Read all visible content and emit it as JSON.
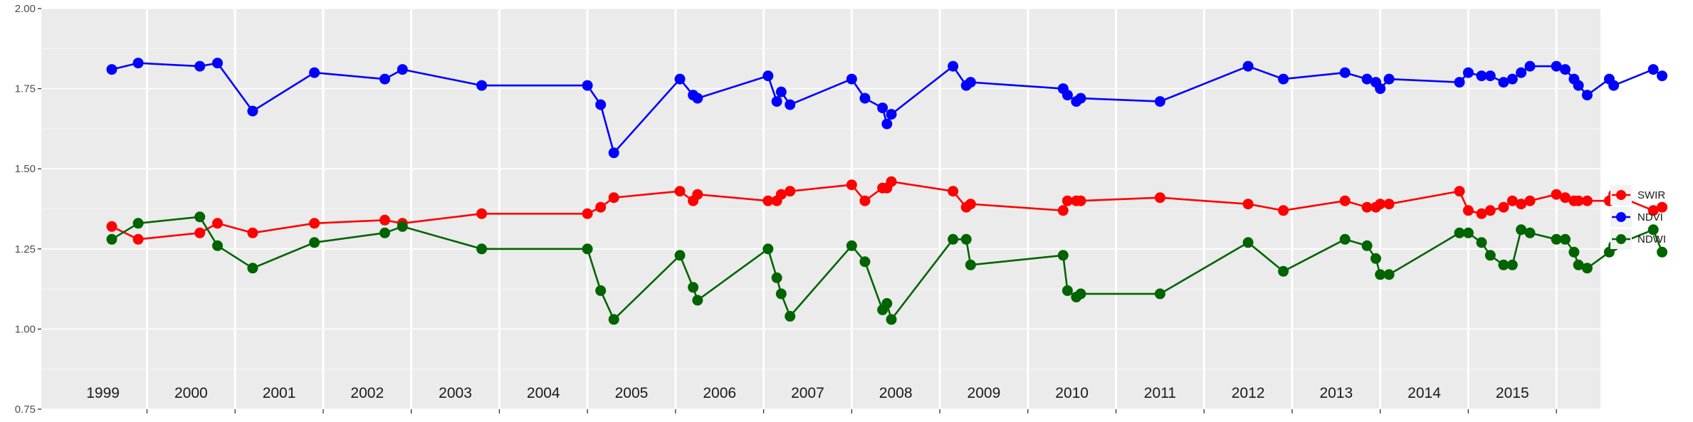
{
  "chart_data": {
    "type": "line",
    "ylim": [
      0.75,
      2.0
    ],
    "y_ticks": [
      "0.75",
      "1.00",
      "1.25",
      "1.50",
      "1.75",
      "2.00"
    ],
    "year_span": [
      1998.8,
      2016.5
    ],
    "year_labels": [
      "1999",
      "2000",
      "2001",
      "2002",
      "2003",
      "2004",
      "2005",
      "2006",
      "2007",
      "2008",
      "2009",
      "2010",
      "2011",
      "2012",
      "2013",
      "2014",
      "2015"
    ],
    "grid": true,
    "legend_position": "right",
    "series": [
      {
        "name": "SWIR",
        "color": "#ff0000",
        "points": [
          [
            1999.6,
            1.32
          ],
          [
            1999.9,
            1.28
          ],
          [
            2000.6,
            1.3
          ],
          [
            2000.8,
            1.33
          ],
          [
            2001.2,
            1.3
          ],
          [
            2001.9,
            1.33
          ],
          [
            2002.7,
            1.34
          ],
          [
            2002.9,
            1.33
          ],
          [
            2003.8,
            1.36
          ],
          [
            2005.0,
            1.36
          ],
          [
            2005.15,
            1.38
          ],
          [
            2005.3,
            1.41
          ],
          [
            2006.05,
            1.43
          ],
          [
            2006.2,
            1.4
          ],
          [
            2006.25,
            1.42
          ],
          [
            2007.05,
            1.4
          ],
          [
            2007.15,
            1.4
          ],
          [
            2007.2,
            1.42
          ],
          [
            2007.3,
            1.43
          ],
          [
            2008.0,
            1.45
          ],
          [
            2008.15,
            1.4
          ],
          [
            2008.35,
            1.44
          ],
          [
            2008.4,
            1.44
          ],
          [
            2008.45,
            1.46
          ],
          [
            2009.15,
            1.43
          ],
          [
            2009.3,
            1.38
          ],
          [
            2009.35,
            1.39
          ],
          [
            2010.4,
            1.37
          ],
          [
            2010.45,
            1.4
          ],
          [
            2010.55,
            1.4
          ],
          [
            2010.6,
            1.4
          ],
          [
            2011.5,
            1.41
          ],
          [
            2012.5,
            1.39
          ],
          [
            2012.9,
            1.37
          ],
          [
            2013.6,
            1.4
          ],
          [
            2013.85,
            1.38
          ],
          [
            2013.95,
            1.38
          ],
          [
            2014.0,
            1.39
          ],
          [
            2014.1,
            1.39
          ],
          [
            2014.9,
            1.43
          ],
          [
            2015.0,
            1.37
          ],
          [
            2015.15,
            1.36
          ],
          [
            2015.25,
            1.37
          ],
          [
            2015.4,
            1.38
          ],
          [
            2015.5,
            1.4
          ],
          [
            2015.6,
            1.39
          ],
          [
            2015.7,
            1.4
          ],
          [
            2016.0,
            1.42
          ],
          [
            2016.1,
            1.41
          ],
          [
            2016.2,
            1.4
          ],
          [
            2016.25,
            1.4
          ],
          [
            2016.35,
            1.4
          ],
          [
            2016.6,
            1.4
          ],
          [
            2016.65,
            1.42
          ],
          [
            2017.1,
            1.37
          ],
          [
            2017.2,
            1.38
          ]
        ]
      },
      {
        "name": "NDVI",
        "color": "#0000ff",
        "points": [
          [
            1999.6,
            1.81
          ],
          [
            1999.9,
            1.83
          ],
          [
            2000.6,
            1.82
          ],
          [
            2000.8,
            1.83
          ],
          [
            2001.2,
            1.68
          ],
          [
            2001.9,
            1.8
          ],
          [
            2002.7,
            1.78
          ],
          [
            2002.9,
            1.81
          ],
          [
            2003.8,
            1.76
          ],
          [
            2005.0,
            1.76
          ],
          [
            2005.15,
            1.7
          ],
          [
            2005.3,
            1.55
          ],
          [
            2006.05,
            1.78
          ],
          [
            2006.2,
            1.73
          ],
          [
            2006.25,
            1.72
          ],
          [
            2007.05,
            1.79
          ],
          [
            2007.15,
            1.71
          ],
          [
            2007.2,
            1.74
          ],
          [
            2007.3,
            1.7
          ],
          [
            2008.0,
            1.78
          ],
          [
            2008.15,
            1.72
          ],
          [
            2008.35,
            1.69
          ],
          [
            2008.4,
            1.64
          ],
          [
            2008.45,
            1.67
          ],
          [
            2009.15,
            1.82
          ],
          [
            2009.3,
            1.76
          ],
          [
            2009.35,
            1.77
          ],
          [
            2010.4,
            1.75
          ],
          [
            2010.45,
            1.73
          ],
          [
            2010.55,
            1.71
          ],
          [
            2010.6,
            1.72
          ],
          [
            2011.5,
            1.71
          ],
          [
            2012.5,
            1.82
          ],
          [
            2012.9,
            1.78
          ],
          [
            2013.6,
            1.8
          ],
          [
            2013.85,
            1.78
          ],
          [
            2013.95,
            1.77
          ],
          [
            2014.0,
            1.75
          ],
          [
            2014.1,
            1.78
          ],
          [
            2014.9,
            1.77
          ],
          [
            2015.0,
            1.8
          ],
          [
            2015.15,
            1.79
          ],
          [
            2015.25,
            1.79
          ],
          [
            2015.4,
            1.77
          ],
          [
            2015.5,
            1.78
          ],
          [
            2015.6,
            1.8
          ],
          [
            2015.7,
            1.82
          ],
          [
            2016.0,
            1.82
          ],
          [
            2016.1,
            1.81
          ],
          [
            2016.2,
            1.78
          ],
          [
            2016.25,
            1.76
          ],
          [
            2016.35,
            1.73
          ],
          [
            2016.6,
            1.78
          ],
          [
            2016.65,
            1.76
          ],
          [
            2017.1,
            1.81
          ],
          [
            2017.2,
            1.79
          ]
        ]
      },
      {
        "name": "NDWI",
        "color": "#006400",
        "points": [
          [
            1999.6,
            1.28
          ],
          [
            1999.9,
            1.33
          ],
          [
            2000.6,
            1.35
          ],
          [
            2000.8,
            1.26
          ],
          [
            2001.2,
            1.19
          ],
          [
            2001.9,
            1.27
          ],
          [
            2002.7,
            1.3
          ],
          [
            2002.9,
            1.32
          ],
          [
            2003.8,
            1.25
          ],
          [
            2005.0,
            1.25
          ],
          [
            2005.15,
            1.12
          ],
          [
            2005.3,
            1.03
          ],
          [
            2006.05,
            1.23
          ],
          [
            2006.2,
            1.13
          ],
          [
            2006.25,
            1.09
          ],
          [
            2007.05,
            1.25
          ],
          [
            2007.15,
            1.16
          ],
          [
            2007.2,
            1.11
          ],
          [
            2007.3,
            1.04
          ],
          [
            2008.0,
            1.26
          ],
          [
            2008.15,
            1.21
          ],
          [
            2008.35,
            1.06
          ],
          [
            2008.4,
            1.08
          ],
          [
            2008.45,
            1.03
          ],
          [
            2009.15,
            1.28
          ],
          [
            2009.3,
            1.28
          ],
          [
            2009.35,
            1.2
          ],
          [
            2010.4,
            1.23
          ],
          [
            2010.45,
            1.12
          ],
          [
            2010.55,
            1.1
          ],
          [
            2010.6,
            1.11
          ],
          [
            2011.5,
            1.11
          ],
          [
            2012.5,
            1.27
          ],
          [
            2012.9,
            1.18
          ],
          [
            2013.6,
            1.28
          ],
          [
            2013.85,
            1.26
          ],
          [
            2013.95,
            1.22
          ],
          [
            2014.0,
            1.17
          ],
          [
            2014.1,
            1.17
          ],
          [
            2014.9,
            1.3
          ],
          [
            2015.0,
            1.3
          ],
          [
            2015.15,
            1.27
          ],
          [
            2015.25,
            1.23
          ],
          [
            2015.4,
            1.2
          ],
          [
            2015.5,
            1.2
          ],
          [
            2015.6,
            1.31
          ],
          [
            2015.7,
            1.3
          ],
          [
            2016.0,
            1.28
          ],
          [
            2016.1,
            1.28
          ],
          [
            2016.2,
            1.24
          ],
          [
            2016.25,
            1.2
          ],
          [
            2016.35,
            1.19
          ],
          [
            2016.6,
            1.24
          ],
          [
            2016.65,
            1.26
          ],
          [
            2017.1,
            1.31
          ],
          [
            2017.2,
            1.24
          ]
        ]
      }
    ]
  }
}
